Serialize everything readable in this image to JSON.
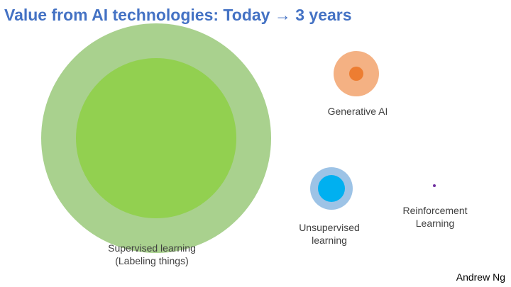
{
  "slide": {
    "title": "Value from AI technologies: Today → 3 years",
    "author": "Andrew Ng"
  },
  "technologies": [
    {
      "key": "supervised",
      "label_line1": "Supervised learning",
      "label_line2": "(Labeling things)",
      "future_color": "#a9d18e",
      "today_color": "#92d050"
    },
    {
      "key": "generative",
      "label_line1": "Generative AI",
      "future_color": "#f4b183",
      "today_color": "#ed7d31"
    },
    {
      "key": "unsupervised",
      "label_line1": "Unsupervised",
      "label_line2": "learning",
      "future_color": "#9dc3e6",
      "today_color": "#00b0f0"
    },
    {
      "key": "reinforcement",
      "label_line1": "Reinforcement",
      "label_line2": "Learning",
      "future_color": "#7030a0",
      "today_color": "#7030a0"
    }
  ]
}
